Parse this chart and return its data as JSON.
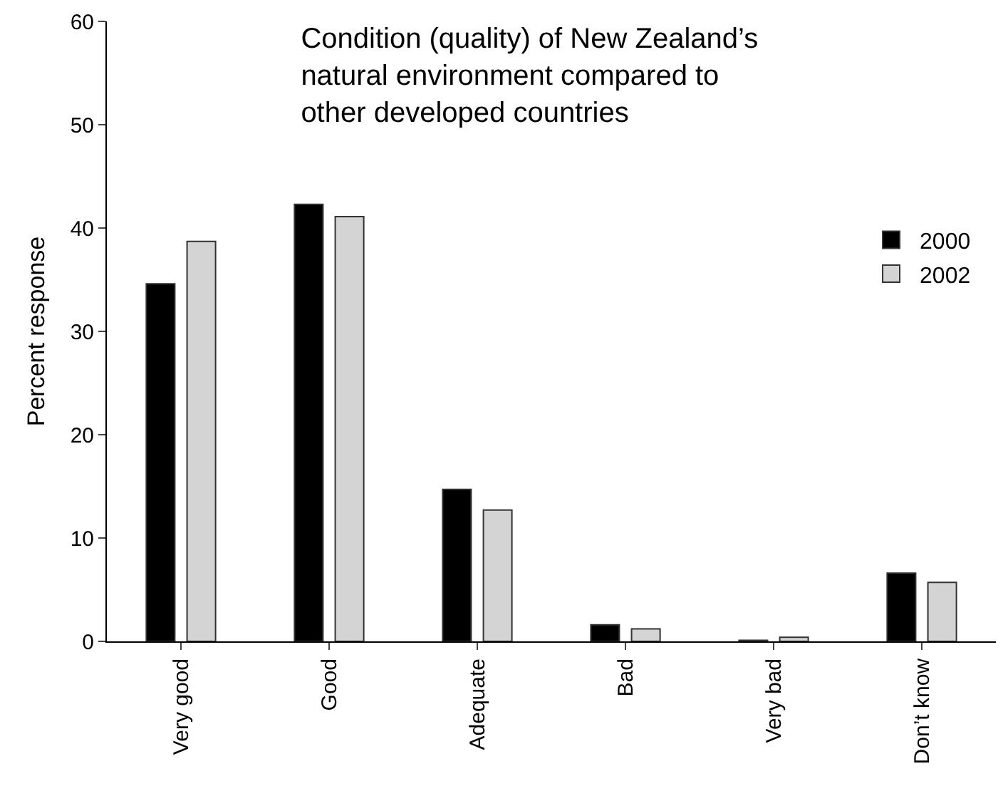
{
  "chart_data": {
    "type": "bar",
    "title": "Condition (quality) of New Zealand’s\nnatural environment compared to\nother developed countries",
    "ylabel": "Percent response",
    "categories": [
      "Very good",
      "Good",
      "Adequate",
      "Bad",
      "Very bad",
      "Don’t know"
    ],
    "series": [
      {
        "name": "2000",
        "color": "#000000",
        "values": [
          34.6,
          42.3,
          14.7,
          1.6,
          0.1,
          6.6
        ]
      },
      {
        "name": "2002",
        "color": "#d4d4d4",
        "values": [
          38.7,
          41.1,
          12.7,
          1.2,
          0.4,
          5.7
        ]
      }
    ],
    "ylim": [
      0,
      60
    ],
    "yticks": [
      0,
      10,
      20,
      30,
      40,
      50,
      60
    ],
    "grid": false,
    "legend": "right"
  }
}
